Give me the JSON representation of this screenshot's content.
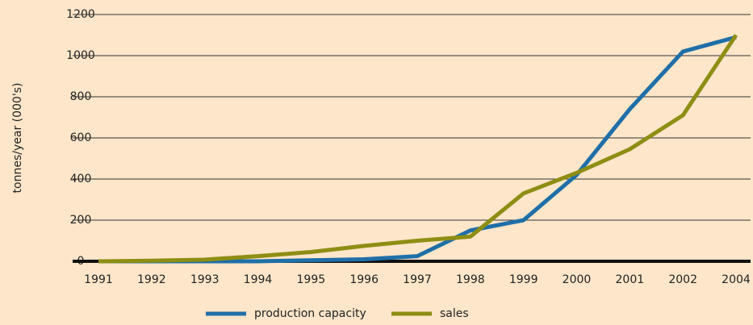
{
  "chart_data": {
    "type": "line",
    "y_label": "tonnes/year (000's)",
    "categories": [
      "1991",
      "1992",
      "1993",
      "1994",
      "1995",
      "1996",
      "1997",
      "1998",
      "1999",
      "2000",
      "2001",
      "2002",
      "2004"
    ],
    "series": [
      {
        "name": "production capacity",
        "color": "#1f6fa8",
        "values": [
          0,
          0,
          0,
          0,
          5,
          10,
          25,
          150,
          200,
          420,
          740,
          1020,
          1090
        ]
      },
      {
        "name": "sales",
        "color": "#8e8e14",
        "values": [
          0,
          3,
          8,
          25,
          45,
          75,
          100,
          120,
          330,
          430,
          545,
          710,
          1100
        ]
      }
    ],
    "ylim": [
      0,
      1200
    ],
    "yticks": [
      0,
      200,
      400,
      600,
      800,
      1000,
      1200
    ],
    "grid": true,
    "legend": "bottom"
  }
}
